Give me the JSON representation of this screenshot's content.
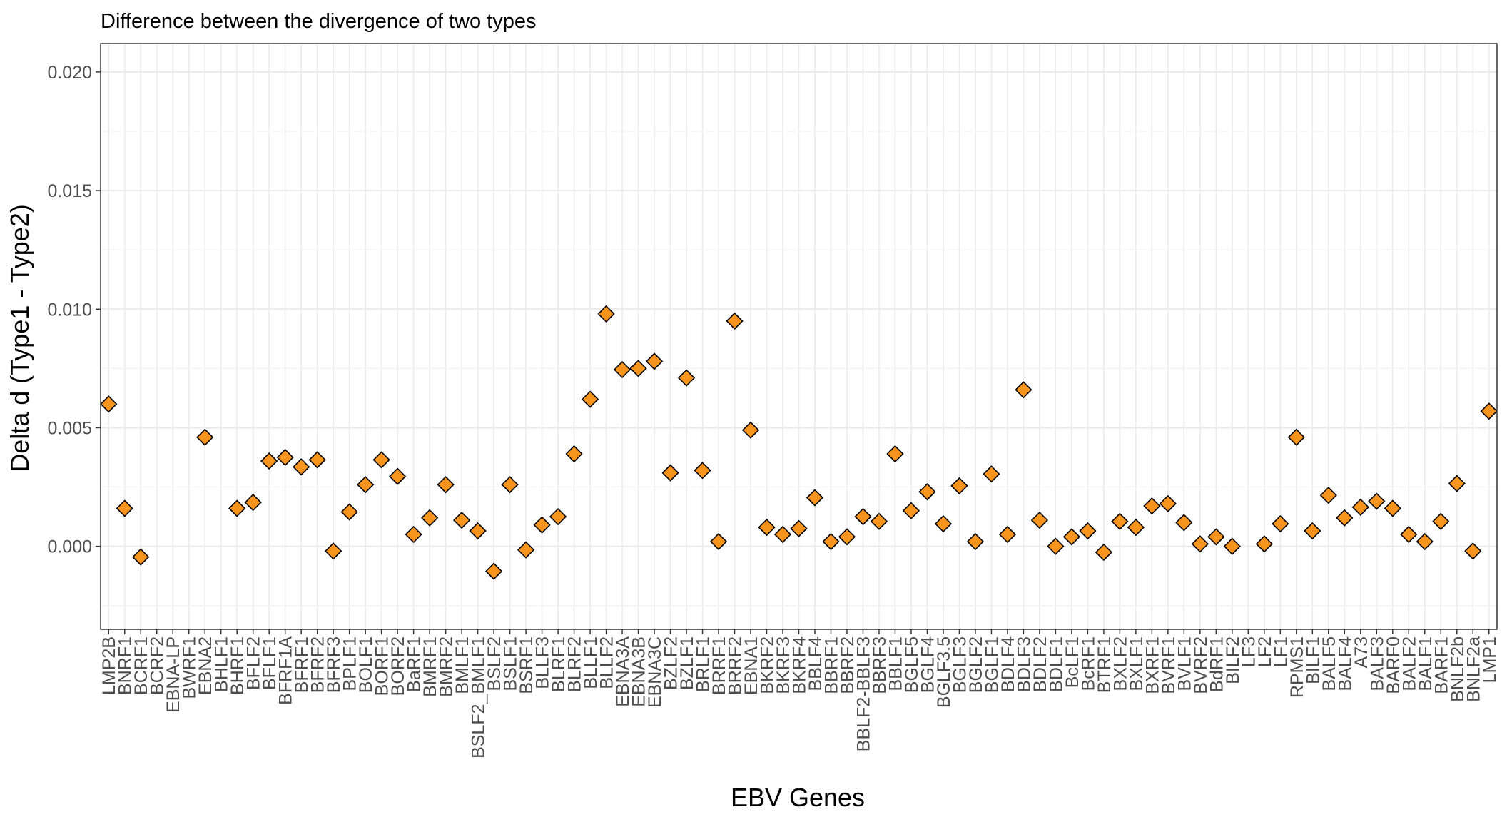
{
  "chart_data": {
    "type": "scatter",
    "title": "Difference between the divergence of two types",
    "xlabel": "EBV Genes",
    "ylabel": "Delta d (Type1 - Type2)",
    "ylim": [
      -0.0035,
      0.0212
    ],
    "yticks": [
      0.0,
      0.005,
      0.01,
      0.015,
      0.02
    ],
    "ytick_labels": [
      "0.000",
      "0.005",
      "0.010",
      "0.015",
      "0.020"
    ],
    "grid": true,
    "marker": "diamond",
    "marker_color": "#f7941d",
    "marker_edge_color": "#000000",
    "categories": [
      "LMP2B",
      "BNRF1",
      "BCRF1",
      "BCRF2",
      "EBNA-LP",
      "BWRF1",
      "EBNA2",
      "BHLF1",
      "BHRF1",
      "BFLF2",
      "BFLF1",
      "BFRF1A",
      "BFRF1",
      "BFRF2",
      "BFRF3",
      "BPLF1",
      "BOLF1",
      "BORF1",
      "BORF2",
      "BaRF1",
      "BMRF1",
      "BMRF2",
      "BMLF1",
      "BSLF2_BMLF1",
      "BSLF2",
      "BSLF1",
      "BSRF1",
      "BLLF3",
      "BLRF1",
      "BLRF2",
      "BLLF1",
      "BLLF2",
      "EBNA3A",
      "EBNA3B",
      "EBNA3C",
      "BZLF2",
      "BZLF1",
      "BRLF1",
      "BRRF1",
      "BRRF2",
      "EBNA1",
      "BKRF2",
      "BKRF3",
      "BKRF4",
      "BBLF4",
      "BBRF1",
      "BBRF2",
      "BBLF2-BBLF3",
      "BBRF3",
      "BBLF1",
      "BGLF5",
      "BGLF4",
      "BGLF3.5",
      "BGLF3",
      "BGLF2",
      "BGLF1",
      "BDLF4",
      "BDLF3",
      "BDLF2",
      "BDLF1",
      "BcLF1",
      "BcRF1",
      "BTRF1",
      "BXLF2",
      "BXLF1",
      "BXRF1",
      "BVRF1",
      "BVLF1",
      "BVRF2",
      "BdRF1",
      "BILF2",
      "LF3",
      "LF2",
      "LF1",
      "RPMS1",
      "BILF1",
      "BALF5",
      "BALF4",
      "A73",
      "BALF3",
      "BARF0",
      "BALF2",
      "BALF1",
      "BARF1",
      "BNLF2b",
      "BNLF2a",
      "LMP1"
    ],
    "values": [
      0.006,
      0.0016,
      -0.00045,
      null,
      null,
      null,
      0.0046,
      null,
      0.0016,
      0.00185,
      0.0036,
      0.00375,
      0.00335,
      0.00365,
      -0.0002,
      0.00145,
      0.0026,
      0.00365,
      0.00295,
      0.0005,
      0.0012,
      0.0026,
      0.0011,
      0.00065,
      -0.00105,
      0.0026,
      -0.00015,
      0.0009,
      0.00125,
      0.0039,
      0.0062,
      0.0098,
      0.00745,
      0.0075,
      0.0078,
      0.0031,
      0.0071,
      0.0032,
      0.0002,
      0.0095,
      0.0049,
      0.0008,
      0.0005,
      0.00075,
      0.00205,
      0.0002,
      0.0004,
      0.00125,
      0.00105,
      0.0039,
      0.0015,
      0.0023,
      0.00095,
      0.00255,
      0.0002,
      0.00305,
      0.0005,
      0.0066,
      0.0011,
      0.0,
      0.0004,
      0.00065,
      -0.00025,
      0.00105,
      0.0008,
      0.0017,
      0.0018,
      0.001,
      0.0001,
      0.0004,
      0.0,
      null,
      0.0001,
      0.00095,
      0.0046,
      0.00065,
      0.00215,
      0.0012,
      0.00165,
      0.0019,
      0.0016,
      0.0005,
      0.0002,
      0.00105,
      0.00265,
      -0.0002,
      0.0057
    ]
  }
}
